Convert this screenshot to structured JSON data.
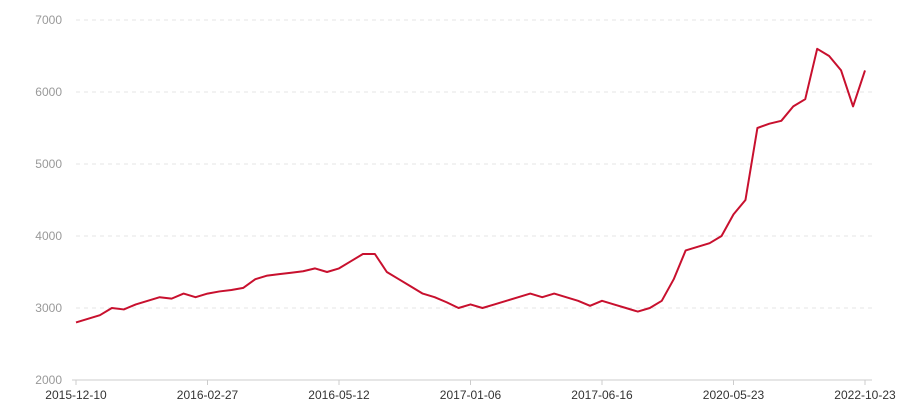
{
  "chart_data": {
    "type": "line",
    "title": "",
    "xlabel": "",
    "ylabel": "",
    "ylim": [
      2000,
      7000
    ],
    "yticks": [
      2000,
      3000,
      4000,
      5000,
      6000,
      7000
    ],
    "grid": true,
    "line_color": "#c8102e",
    "x_tick_labels": [
      {
        "index": 0,
        "label": "2015-12-10"
      },
      {
        "index": 11,
        "label": "2016-02-27"
      },
      {
        "index": 22,
        "label": "2016-05-12"
      },
      {
        "index": 33,
        "label": "2017-01-06"
      },
      {
        "index": 44,
        "label": "2017-06-16"
      },
      {
        "index": 55,
        "label": "2020-05-23"
      },
      {
        "index": 66,
        "label": "2022-10-23"
      }
    ],
    "values": [
      2800,
      2850,
      2900,
      3000,
      2980,
      3050,
      3100,
      3150,
      3130,
      3200,
      3150,
      3200,
      3230,
      3250,
      3280,
      3400,
      3450,
      3470,
      3490,
      3510,
      3550,
      3500,
      3550,
      3650,
      3750,
      3750,
      3500,
      3400,
      3300,
      3200,
      3150,
      3080,
      3000,
      3050,
      3000,
      3050,
      3100,
      3150,
      3200,
      3150,
      3200,
      3150,
      3100,
      3030,
      3100,
      3050,
      3000,
      2950,
      3000,
      3100,
      3400,
      3800,
      3850,
      3900,
      4000,
      4300,
      4500,
      5500,
      5560,
      5600,
      5800,
      5900,
      6600,
      6500,
      6300,
      5800,
      6300
    ]
  }
}
